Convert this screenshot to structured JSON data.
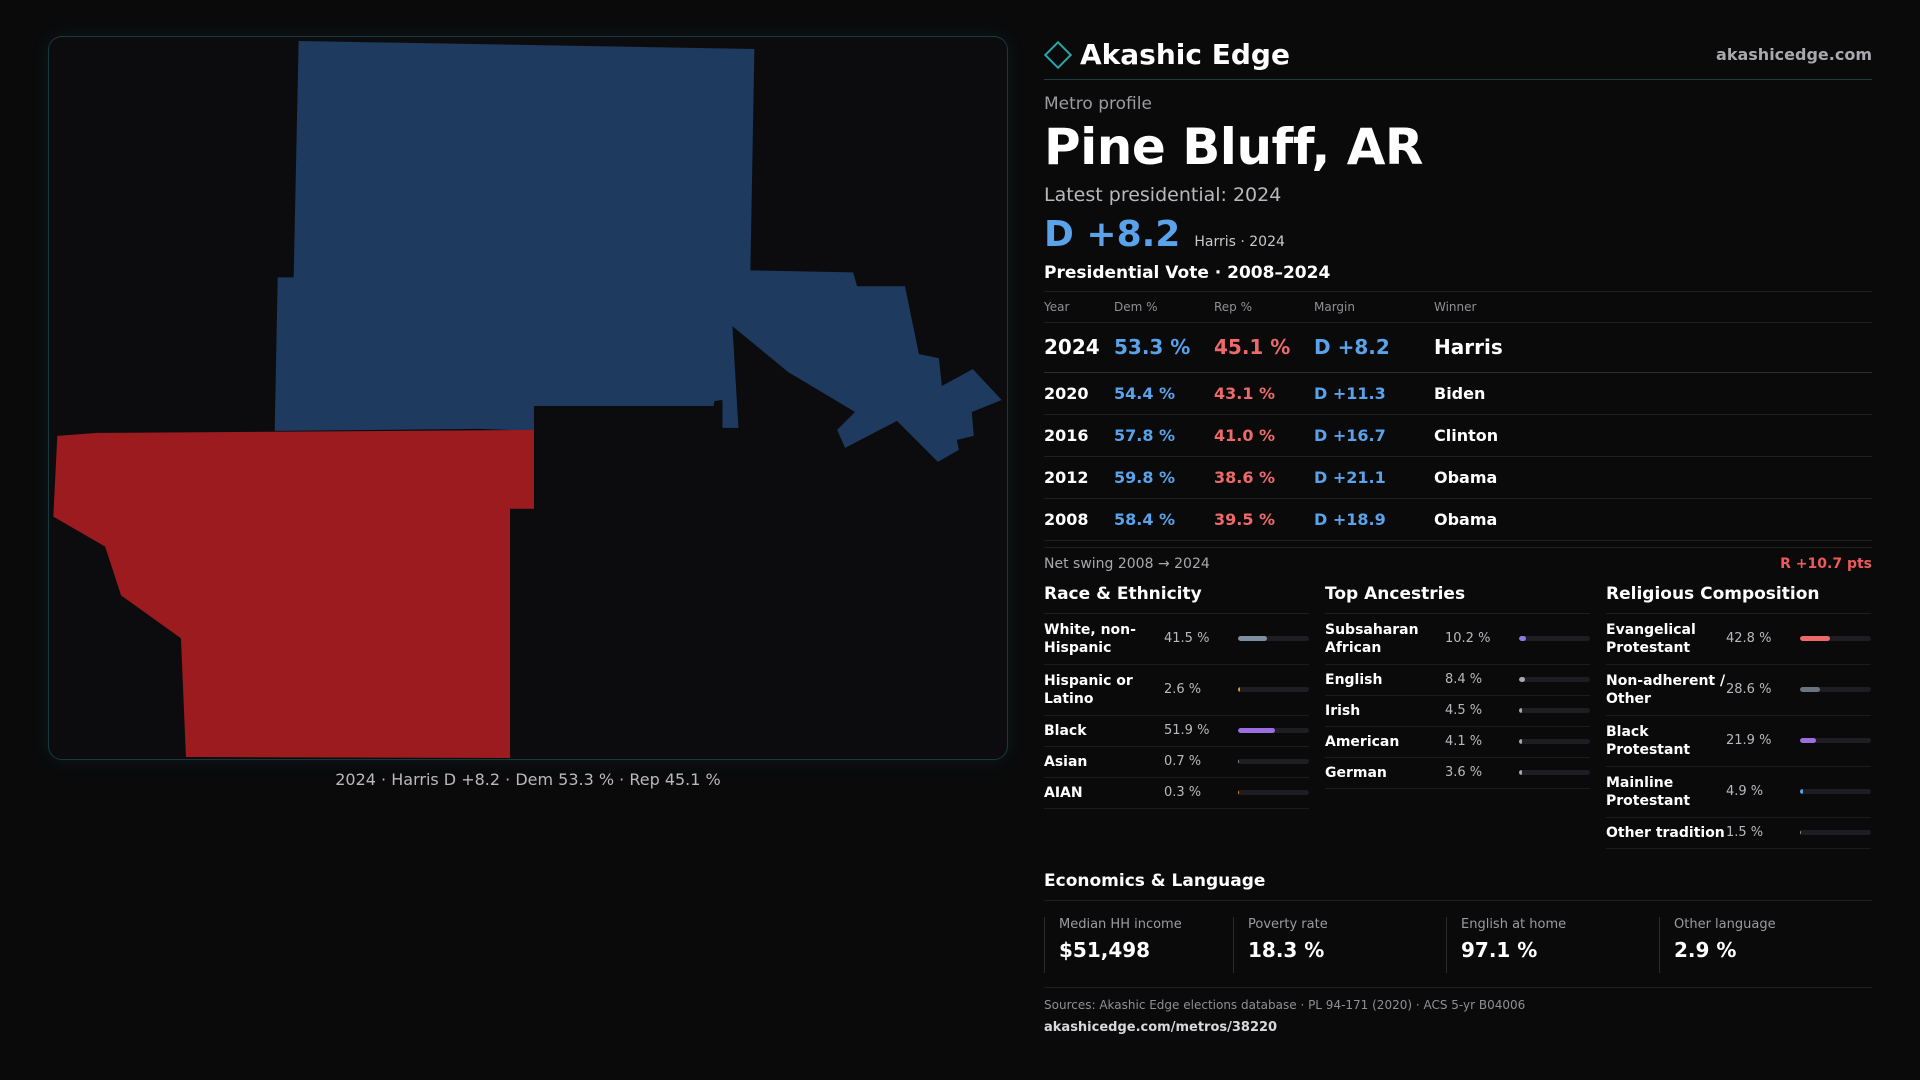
{
  "colors": {
    "dem": "#5aa2ea",
    "rep": "#ec6a6a",
    "map_blue": "#1e3a5f",
    "map_red": "#9b1b1e",
    "accent": "#2aa6a8"
  },
  "map": {
    "caption": "2024 · Harris D +8.2 · Dem 53.3 % · Rep 45.1 %"
  },
  "header": {
    "brand": "Akashic Edge",
    "brand_icon": "diamond-icon",
    "site": "akashicedge.com"
  },
  "profile": {
    "subhead": "Metro profile",
    "title": "Pine Bluff, AR",
    "latest_label": "Latest presidential: 2024",
    "margin": "D +8.2",
    "margin_note": "Harris · 2024"
  },
  "votes": {
    "title": "Presidential Vote · 2008–2024",
    "headers": {
      "year": "Year",
      "dem": "Dem %",
      "rep": "Rep %",
      "margin": "Margin",
      "winner": "Winner"
    },
    "rows": [
      {
        "year": "2024",
        "dem": "53.3 %",
        "rep": "45.1 %",
        "margin": "D +8.2",
        "winner": "Harris"
      },
      {
        "year": "2020",
        "dem": "54.4 %",
        "rep": "43.1 %",
        "margin": "D +11.3",
        "winner": "Biden"
      },
      {
        "year": "2016",
        "dem": "57.8 %",
        "rep": "41.0 %",
        "margin": "D +16.7",
        "winner": "Clinton"
      },
      {
        "year": "2012",
        "dem": "59.8 %",
        "rep": "38.6 %",
        "margin": "D +21.1",
        "winner": "Obama"
      },
      {
        "year": "2008",
        "dem": "58.4 %",
        "rep": "39.5 %",
        "margin": "D +18.9",
        "winner": "Obama"
      }
    ],
    "swing_label": "Net swing 2008 → 2024",
    "swing_value": "R +10.7 pts"
  },
  "race": {
    "title": "Race & Ethnicity",
    "rows": [
      {
        "label": "White, non-Hispanic",
        "value": "41.5 %",
        "fill": 0.415,
        "color": "#7f8ea3"
      },
      {
        "label": "Hispanic or Latino",
        "value": "2.6 %",
        "fill": 0.026,
        "color": "#d99a2b"
      },
      {
        "label": "Black",
        "value": "51.9 %",
        "fill": 0.519,
        "color": "#9b6fe0"
      },
      {
        "label": "Asian",
        "value": "0.7 %",
        "fill": 0.007,
        "color": "#7f8ea3"
      },
      {
        "label": "AIAN",
        "value": "0.3 %",
        "fill": 0.003,
        "color": "#d98a2b"
      }
    ]
  },
  "ancestries": {
    "title": "Top Ancestries",
    "rows": [
      {
        "label": "Subsaharan African",
        "value": "10.2 %",
        "fill": 0.102,
        "color": "#8a7be0"
      },
      {
        "label": "English",
        "value": "8.4 %",
        "fill": 0.084,
        "color": "#a9a9ad"
      },
      {
        "label": "Irish",
        "value": "4.5 %",
        "fill": 0.045,
        "color": "#a9a9ad"
      },
      {
        "label": "American",
        "value": "4.1 %",
        "fill": 0.041,
        "color": "#a9a9ad"
      },
      {
        "label": "German",
        "value": "3.6 %",
        "fill": 0.036,
        "color": "#a9a9ad"
      }
    ]
  },
  "religion": {
    "title": "Religious Composition",
    "rows": [
      {
        "label": "Evangelical Protestant",
        "value": "42.8 %",
        "fill": 0.428,
        "color": "#ec6a6a"
      },
      {
        "label": "Non-adherent / Other",
        "value": "28.6 %",
        "fill": 0.286,
        "color": "#6b7280"
      },
      {
        "label": "Black Protestant",
        "value": "21.9 %",
        "fill": 0.219,
        "color": "#9b6fe0"
      },
      {
        "label": "Mainline Protestant",
        "value": "4.9 %",
        "fill": 0.049,
        "color": "#5aa2ea"
      },
      {
        "label": "Other tradition",
        "value": "1.5 %",
        "fill": 0.015,
        "color": "#8f8f94"
      }
    ]
  },
  "economics": {
    "title": "Economics & Language",
    "cells": [
      {
        "label": "Median HH income",
        "value": "$51,498"
      },
      {
        "label": "Poverty rate",
        "value": "18.3 %"
      },
      {
        "label": "English at home",
        "value": "97.1 %"
      },
      {
        "label": "Other language",
        "value": "2.9 %"
      }
    ]
  },
  "sources": {
    "text": "Sources: Akashic Edge elections database · PL 94-171 (2020) · ACS 5-yr B04006",
    "url": "akashicedge.com/metros/38220"
  }
}
